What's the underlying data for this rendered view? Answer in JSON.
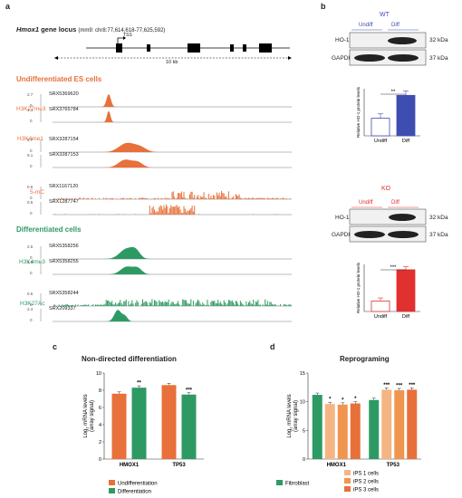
{
  "panels": {
    "a": "a",
    "b": "b",
    "c": "c",
    "d": "d"
  },
  "locus": {
    "gene": "Hmox1",
    "suffix": " gene locus",
    "coords": "(mm9: chr8:77,614,618-77,625,592)",
    "tss": "TSS",
    "scale": "10 kb"
  },
  "undiff": {
    "title": "Undifferentiated ES cells",
    "marks": [
      "H3K27me3",
      "H3K4me1",
      "5-mC"
    ],
    "tracks": [
      {
        "id": "SRX5369620",
        "max": "2.7"
      },
      {
        "id": "SRX3765784",
        "max": "1.1"
      },
      {
        "id": "SRX3287154",
        "max": "9.7"
      },
      {
        "id": "SRX3287153",
        "max": "9.1"
      },
      {
        "id": "SRX1167120",
        "max": "0.6"
      },
      {
        "id": "SRX1287747",
        "max": "0.5"
      }
    ]
  },
  "diff": {
    "title": "Differentiated cells",
    "marks": [
      "H3K4me3",
      "H3K27Ac"
    ],
    "tracks": [
      {
        "id": "SRX5358256",
        "max": "2.5"
      },
      {
        "id": "SRX5358255",
        "max": "1.3"
      },
      {
        "id": "SRX5358244",
        "max": "0.5"
      },
      {
        "id": "SRX209337",
        "max": "2.4"
      }
    ]
  },
  "colors": {
    "orange": "#e8703a",
    "green": "#2e9a63",
    "blue": "#3e4db0",
    "red": "#e0302f",
    "wt_label": "#3e4db0",
    "ko_label": "#e0302f"
  },
  "western": {
    "wt": {
      "title": "WT",
      "cols": [
        "Undiff",
        "Diff"
      ],
      "rows": [
        "HO-1",
        "GAPDH"
      ],
      "sizes": [
        "32 kDa",
        "37 kDa"
      ]
    },
    "ko": {
      "title": "KO",
      "cols": [
        "Undiff",
        "Diff"
      ],
      "rows": [
        "HO-1",
        "GAPDH"
      ],
      "sizes": [
        "32 kDa",
        "37 kDa"
      ]
    }
  },
  "chart_data": [
    {
      "type": "bar",
      "panel": "b-WT",
      "categories": [
        "Undiff",
        "Diff"
      ],
      "values": [
        1.0,
        2.3
      ],
      "errors": [
        0.25,
        0.25
      ],
      "ylabel": "Relative HO-1 protein levels",
      "significance": "**"
    },
    {
      "type": "bar",
      "panel": "b-KO",
      "categories": [
        "Undiff",
        "Diff"
      ],
      "values": [
        1.0,
        4.0
      ],
      "errors": [
        0.3,
        0.3
      ],
      "ylabel": "Relative HO-1 protein levels",
      "significance": "***"
    },
    {
      "type": "bar",
      "panel": "c",
      "title": "Non-directed differentiation",
      "categories": [
        "HMOX1",
        "TP53"
      ],
      "ylim": [
        0,
        10
      ],
      "yticks": [
        "0",
        "2",
        "4",
        "6",
        "8",
        "10"
      ],
      "ylabel": "Log2 mRNA levels",
      "ylabel2": "(array signal)",
      "series": [
        {
          "name": "Undifferentiation",
          "values": [
            7.6,
            8.6
          ]
        },
        {
          "name": "Differentiation",
          "values": [
            8.3,
            7.5
          ]
        }
      ],
      "significance": [
        "**",
        "***"
      ]
    },
    {
      "type": "bar",
      "panel": "d",
      "title": "Reprograming",
      "categories": [
        "HMOX1",
        "TP53"
      ],
      "ylim": [
        0,
        15
      ],
      "yticks": [
        "0",
        "5",
        "10",
        "15"
      ],
      "ylabel": "Log2 mRNA levels",
      "ylabel2": "(array signal)",
      "series": [
        {
          "name": "Fibroblast",
          "values": [
            11.2,
            10.3
          ]
        },
        {
          "name": "iPS 1 cells",
          "values": [
            9.6,
            12.1
          ]
        },
        {
          "name": "iPS 2 cells",
          "values": [
            9.5,
            12.0
          ]
        },
        {
          "name": "iPS 3 cells",
          "values": [
            9.7,
            12.1
          ]
        }
      ],
      "significance": [
        [
          "",
          "*",
          "*",
          "*"
        ],
        [
          "",
          "***",
          "***",
          "***"
        ]
      ]
    }
  ],
  "legend_c": [
    "Undifferentiation",
    "Differentiation"
  ],
  "legend_d": [
    "Fibroblast",
    "iPS 1 cells",
    "iPS 2 cells",
    "iPS 3 cells"
  ]
}
